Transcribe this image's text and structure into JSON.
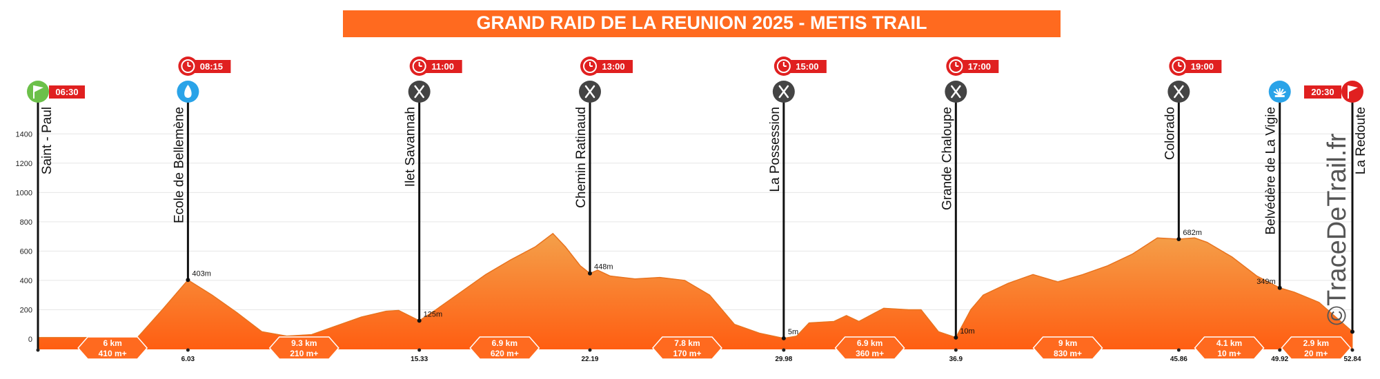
{
  "chart_data": {
    "type": "area",
    "title": "GRAND RAID DE LA REUNION 2025 - METIS TRAIL",
    "xlabel": "",
    "ylabel": "",
    "xlim": [
      0,
      52.84
    ],
    "ylim": [
      0,
      1500
    ],
    "yticks": [
      0,
      200,
      400,
      600,
      800,
      1000,
      1200,
      1400
    ],
    "grid": true,
    "watermark": "©TraceDeTrail.fr",
    "colors": {
      "fill_top": "#f4a04a",
      "fill_bottom": "#ff5e12",
      "title_bg": "#ff6a1f",
      "time_red": "#e02020",
      "food": "#444444",
      "water": "#2aa3e8",
      "start": "#6cc04a"
    },
    "profile": [
      [
        0,
        10
      ],
      [
        1,
        10
      ],
      [
        2,
        10
      ],
      [
        3,
        10
      ],
      [
        4,
        10
      ],
      [
        5,
        200
      ],
      [
        6.03,
        403
      ],
      [
        7,
        300
      ],
      [
        8,
        180
      ],
      [
        9,
        50
      ],
      [
        10,
        20
      ],
      [
        11,
        30
      ],
      [
        12,
        90
      ],
      [
        13,
        150
      ],
      [
        14,
        190
      ],
      [
        14.5,
        195
      ],
      [
        15.33,
        125
      ],
      [
        16,
        200
      ],
      [
        17,
        320
      ],
      [
        18,
        440
      ],
      [
        19,
        540
      ],
      [
        20,
        630
      ],
      [
        20.7,
        720
      ],
      [
        21.2,
        630
      ],
      [
        21.8,
        500
      ],
      [
        22.19,
        448
      ],
      [
        22.5,
        470
      ],
      [
        23,
        430
      ],
      [
        24,
        410
      ],
      [
        25,
        420
      ],
      [
        26,
        400
      ],
      [
        27,
        300
      ],
      [
        28,
        100
      ],
      [
        29,
        40
      ],
      [
        29.98,
        5
      ],
      [
        30.5,
        20
      ],
      [
        31,
        110
      ],
      [
        32,
        120
      ],
      [
        32.5,
        160
      ],
      [
        33,
        120
      ],
      [
        34,
        210
      ],
      [
        35,
        200
      ],
      [
        35.5,
        200
      ],
      [
        36.2,
        50
      ],
      [
        36.9,
        10
      ],
      [
        37.5,
        200
      ],
      [
        38,
        300
      ],
      [
        39,
        380
      ],
      [
        40,
        440
      ],
      [
        41,
        390
      ],
      [
        42,
        440
      ],
      [
        43,
        500
      ],
      [
        44,
        580
      ],
      [
        45,
        690
      ],
      [
        45.86,
        682
      ],
      [
        46.5,
        690
      ],
      [
        47,
        660
      ],
      [
        48,
        560
      ],
      [
        49,
        430
      ],
      [
        49.92,
        349
      ],
      [
        50.5,
        320
      ],
      [
        51.5,
        250
      ],
      [
        52.84,
        50
      ]
    ],
    "waypoints": [
      {
        "km": 0,
        "name": "Saint - Paul",
        "time": "06:30",
        "icon": "start-flag-icon",
        "ele_label": ""
      },
      {
        "km": 6.03,
        "name": "Ecole de Bellemène",
        "time": "08:15",
        "icon": "water-drop-icon",
        "ele_label": "403m"
      },
      {
        "km": 15.33,
        "name": "Ilet Savannah",
        "time": "11:00",
        "icon": "food-icon",
        "ele_label": "125m"
      },
      {
        "km": 22.19,
        "name": "Chemin Ratinaud",
        "time": "13:00",
        "icon": "food-icon",
        "ele_label": "448m"
      },
      {
        "km": 29.98,
        "name": "La Possession",
        "time": "15:00",
        "icon": "food-icon",
        "ele_label": "5m"
      },
      {
        "km": 36.9,
        "name": "Grande Chaloupe",
        "time": "17:00",
        "icon": "food-icon",
        "ele_label": "10m"
      },
      {
        "km": 45.86,
        "name": "Colorado",
        "time": "19:00",
        "icon": "food-icon",
        "ele_label": "682m"
      },
      {
        "km": 49.92,
        "name": "Belvédère de La Vigie",
        "time": "",
        "icon": "viewpoint-icon",
        "ele_label": "349m"
      },
      {
        "km": 52.84,
        "name": "La Redoute",
        "time": "20:30",
        "icon": "finish-flag-icon",
        "ele_label": ""
      }
    ],
    "km_ticks": [
      "6.03",
      "15.33",
      "22.19",
      "29.98",
      "36.9",
      "45.86",
      "49.92",
      "52.84"
    ],
    "segments": [
      {
        "km": 3.0,
        "dist": "6 km",
        "gain": "410 m+"
      },
      {
        "km": 10.7,
        "dist": "9.3 km",
        "gain": "210 m+"
      },
      {
        "km": 18.76,
        "dist": "6.9 km",
        "gain": "620 m+"
      },
      {
        "km": 26.1,
        "dist": "7.8 km",
        "gain": "170 m+"
      },
      {
        "km": 33.44,
        "dist": "6.9 km",
        "gain": "360 m+"
      },
      {
        "km": 41.4,
        "dist": "9 km",
        "gain": "830 m+"
      },
      {
        "km": 47.89,
        "dist": "4.1 km",
        "gain": "10 m+"
      },
      {
        "km": 51.38,
        "dist": "2.9 km",
        "gain": "20 m+"
      }
    ]
  }
}
